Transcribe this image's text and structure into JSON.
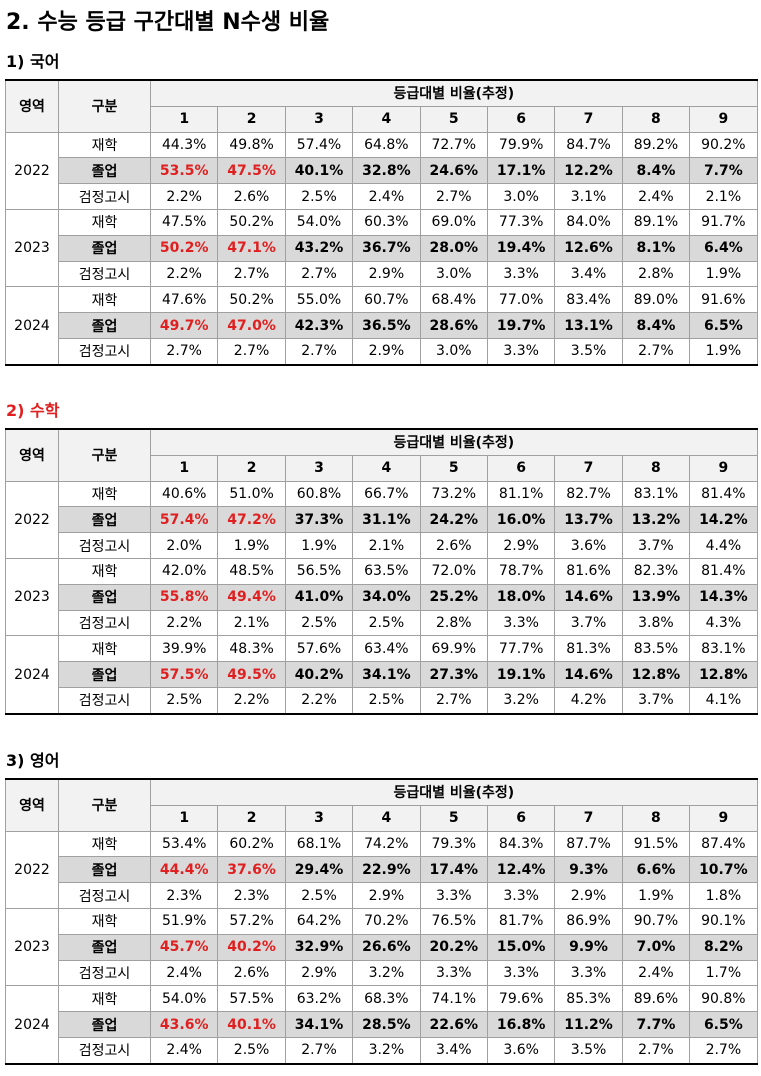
{
  "title": "2. 수능 등급 구간대별 N수생 비율",
  "sections": [
    {
      "heading": "1) 국어",
      "header": {
        "area": "영역",
        "category": "구분",
        "group": "등급대별 비율(추정)",
        "grades": [
          "1",
          "2",
          "3",
          "4",
          "5",
          "6",
          "7",
          "8",
          "9"
        ]
      },
      "years": [
        {
          "year": "2022",
          "rows": [
            {
              "label": "재학",
              "cells": [
                "44.3%",
                "49.8%",
                "57.4%",
                "64.8%",
                "72.7%",
                "79.9%",
                "84.7%",
                "89.2%",
                "90.2%"
              ]
            },
            {
              "label": "졸업",
              "cells": [
                "53.5%",
                "47.5%",
                "40.1%",
                "32.8%",
                "24.6%",
                "17.1%",
                "12.2%",
                "8.4%",
                "7.7%"
              ]
            },
            {
              "label": "검정고시",
              "cells": [
                "2.2%",
                "2.6%",
                "2.5%",
                "2.4%",
                "2.7%",
                "3.0%",
                "3.1%",
                "2.4%",
                "2.1%"
              ]
            }
          ]
        },
        {
          "year": "2023",
          "rows": [
            {
              "label": "재학",
              "cells": [
                "47.5%",
                "50.2%",
                "54.0%",
                "60.3%",
                "69.0%",
                "77.3%",
                "84.0%",
                "89.1%",
                "91.7%"
              ]
            },
            {
              "label": "졸업",
              "cells": [
                "50.2%",
                "47.1%",
                "43.2%",
                "36.7%",
                "28.0%",
                "19.4%",
                "12.6%",
                "8.1%",
                "6.4%"
              ]
            },
            {
              "label": "검정고시",
              "cells": [
                "2.2%",
                "2.7%",
                "2.7%",
                "2.9%",
                "3.0%",
                "3.3%",
                "3.4%",
                "2.8%",
                "1.9%"
              ]
            }
          ]
        },
        {
          "year": "2024",
          "rows": [
            {
              "label": "재학",
              "cells": [
                "47.6%",
                "50.2%",
                "55.0%",
                "60.7%",
                "68.4%",
                "77.0%",
                "83.4%",
                "89.0%",
                "91.6%"
              ]
            },
            {
              "label": "졸업",
              "cells": [
                "49.7%",
                "47.0%",
                "42.3%",
                "36.5%",
                "28.6%",
                "19.7%",
                "13.1%",
                "8.4%",
                "6.5%"
              ]
            },
            {
              "label": "검정고시",
              "cells": [
                "2.7%",
                "2.7%",
                "2.7%",
                "2.9%",
                "3.0%",
                "3.3%",
                "3.5%",
                "2.7%",
                "1.9%"
              ]
            }
          ]
        }
      ]
    },
    {
      "heading": "2) 수학",
      "header": {
        "area": "영역",
        "category": "구분",
        "group": "등급대별 비율(추정)",
        "grades": [
          "1",
          "2",
          "3",
          "4",
          "5",
          "6",
          "7",
          "8",
          "9"
        ]
      },
      "years": [
        {
          "year": "2022",
          "rows": [
            {
              "label": "재학",
              "cells": [
                "40.6%",
                "51.0%",
                "60.8%",
                "66.7%",
                "73.2%",
                "81.1%",
                "82.7%",
                "83.1%",
                "81.4%"
              ]
            },
            {
              "label": "졸업",
              "cells": [
                "57.4%",
                "47.2%",
                "37.3%",
                "31.1%",
                "24.2%",
                "16.0%",
                "13.7%",
                "13.2%",
                "14.2%"
              ]
            },
            {
              "label": "검정고시",
              "cells": [
                "2.0%",
                "1.9%",
                "1.9%",
                "2.1%",
                "2.6%",
                "2.9%",
                "3.6%",
                "3.7%",
                "4.4%"
              ]
            }
          ]
        },
        {
          "year": "2023",
          "rows": [
            {
              "label": "재학",
              "cells": [
                "42.0%",
                "48.5%",
                "56.5%",
                "63.5%",
                "72.0%",
                "78.7%",
                "81.6%",
                "82.3%",
                "81.4%"
              ]
            },
            {
              "label": "졸업",
              "cells": [
                "55.8%",
                "49.4%",
                "41.0%",
                "34.0%",
                "25.2%",
                "18.0%",
                "14.6%",
                "13.9%",
                "14.3%"
              ]
            },
            {
              "label": "검정고시",
              "cells": [
                "2.2%",
                "2.1%",
                "2.5%",
                "2.5%",
                "2.8%",
                "3.3%",
                "3.7%",
                "3.8%",
                "4.3%"
              ]
            }
          ]
        },
        {
          "year": "2024",
          "rows": [
            {
              "label": "재학",
              "cells": [
                "39.9%",
                "48.3%",
                "57.6%",
                "63.4%",
                "69.9%",
                "77.7%",
                "81.3%",
                "83.5%",
                "83.1%"
              ]
            },
            {
              "label": "졸업",
              "cells": [
                "57.5%",
                "49.5%",
                "40.2%",
                "34.1%",
                "27.3%",
                "19.1%",
                "14.6%",
                "12.8%",
                "12.8%"
              ]
            },
            {
              "label": "검정고시",
              "cells": [
                "2.5%",
                "2.2%",
                "2.2%",
                "2.5%",
                "2.7%",
                "3.2%",
                "4.2%",
                "3.7%",
                "4.1%"
              ]
            }
          ]
        }
      ]
    },
    {
      "heading": "3) 영어",
      "header": {
        "area": "영역",
        "category": "구분",
        "group": "등급대별 비율(추정)",
        "grades": [
          "1",
          "2",
          "3",
          "4",
          "5",
          "6",
          "7",
          "8",
          "9"
        ]
      },
      "years": [
        {
          "year": "2022",
          "rows": [
            {
              "label": "재학",
              "cells": [
                "53.4%",
                "60.2%",
                "68.1%",
                "74.2%",
                "79.3%",
                "84.3%",
                "87.7%",
                "91.5%",
                "87.4%"
              ]
            },
            {
              "label": "졸업",
              "cells": [
                "44.4%",
                "37.6%",
                "29.4%",
                "22.9%",
                "17.4%",
                "12.4%",
                "9.3%",
                "6.6%",
                "10.7%"
              ]
            },
            {
              "label": "검정고시",
              "cells": [
                "2.3%",
                "2.3%",
                "2.5%",
                "2.9%",
                "3.3%",
                "3.3%",
                "2.9%",
                "1.9%",
                "1.8%"
              ]
            }
          ]
        },
        {
          "year": "2023",
          "rows": [
            {
              "label": "재학",
              "cells": [
                "51.9%",
                "57.2%",
                "64.2%",
                "70.2%",
                "76.5%",
                "81.7%",
                "86.9%",
                "90.7%",
                "90.1%"
              ]
            },
            {
              "label": "졸업",
              "cells": [
                "45.7%",
                "40.2%",
                "32.9%",
                "26.6%",
                "20.2%",
                "15.0%",
                "9.9%",
                "7.0%",
                "8.2%"
              ]
            },
            {
              "label": "검정고시",
              "cells": [
                "2.4%",
                "2.6%",
                "2.9%",
                "3.2%",
                "3.3%",
                "3.3%",
                "3.3%",
                "2.4%",
                "1.7%"
              ]
            }
          ]
        },
        {
          "year": "2024",
          "rows": [
            {
              "label": "재학",
              "cells": [
                "54.0%",
                "57.5%",
                "63.2%",
                "68.3%",
                "74.1%",
                "79.6%",
                "85.3%",
                "89.6%",
                "90.8%"
              ]
            },
            {
              "label": "졸업",
              "cells": [
                "43.6%",
                "40.1%",
                "34.1%",
                "28.5%",
                "22.6%",
                "16.8%",
                "11.2%",
                "7.7%",
                "6.5%"
              ]
            },
            {
              "label": "검정고시",
              "cells": [
                "2.4%",
                "2.5%",
                "2.7%",
                "3.2%",
                "3.4%",
                "3.6%",
                "3.5%",
                "2.7%",
                "2.7%"
              ]
            }
          ]
        }
      ]
    }
  ]
}
